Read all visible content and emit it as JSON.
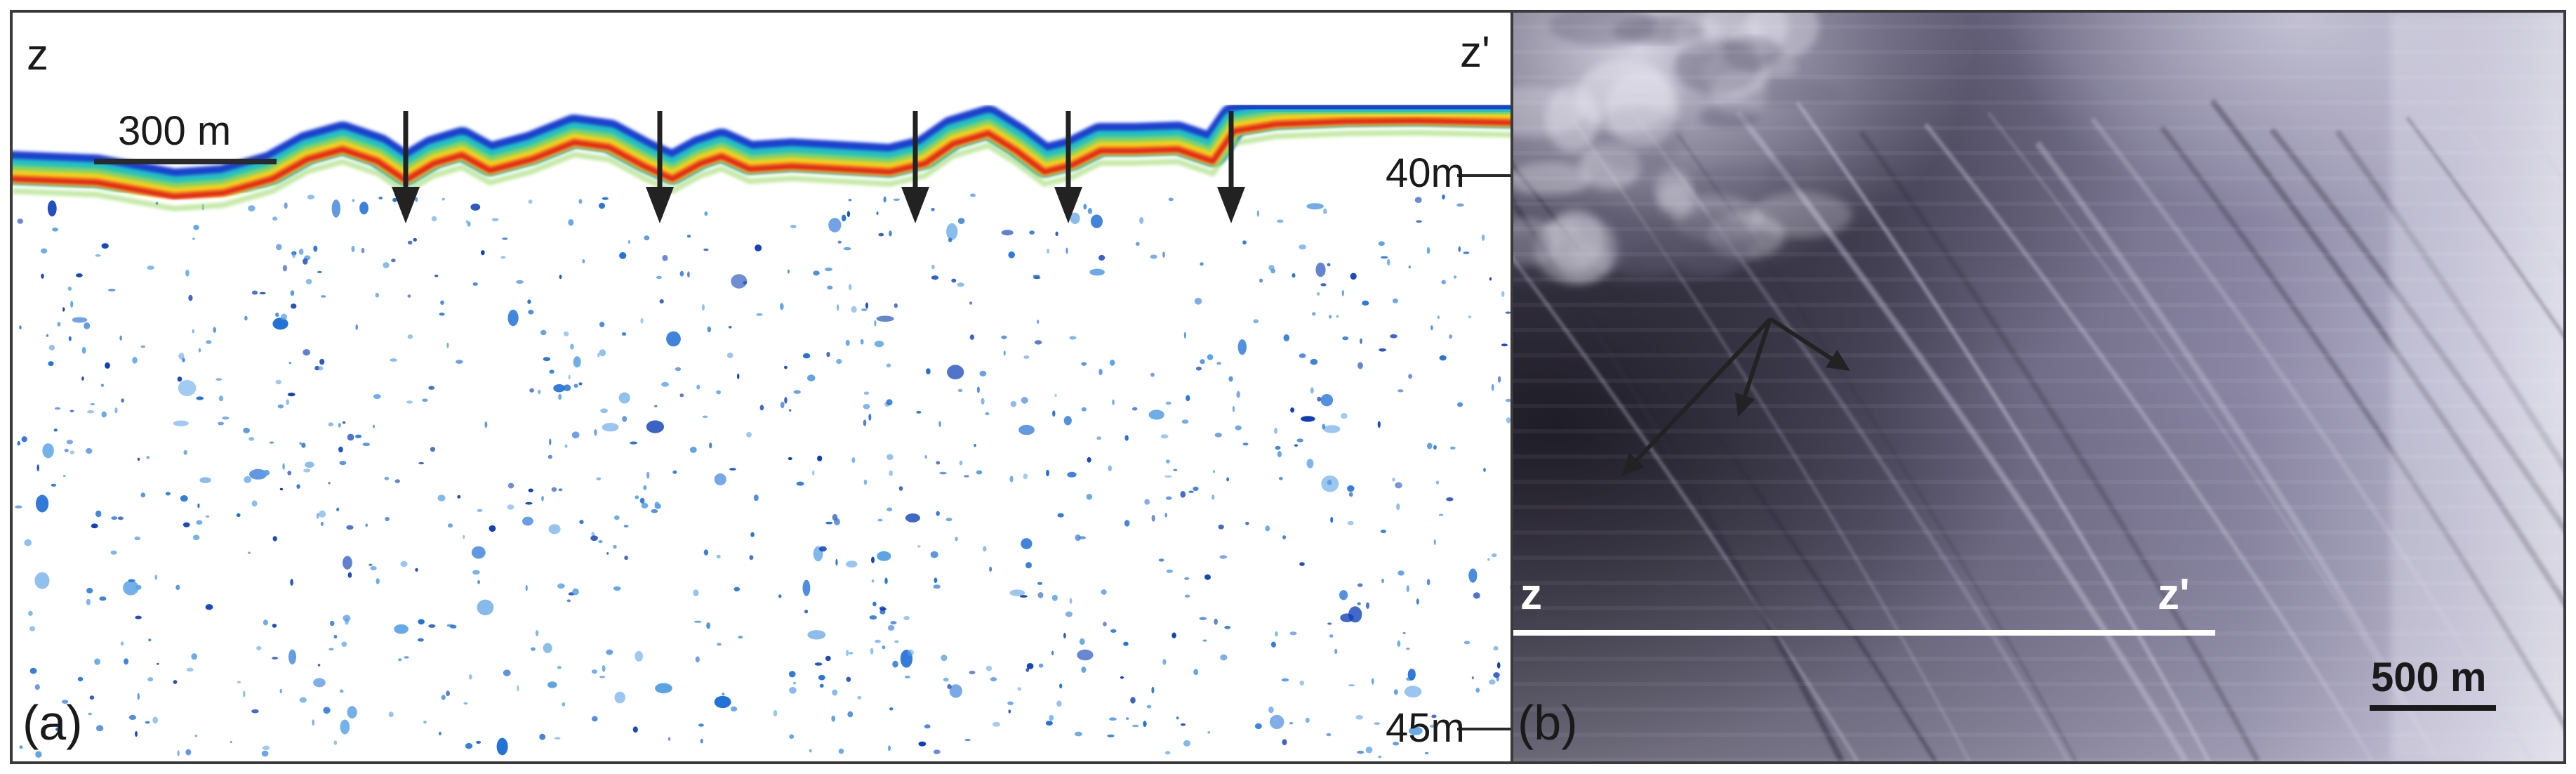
{
  "panel_a": {
    "start_label": "z",
    "end_label": "z'",
    "scale_bar_label": "300 m",
    "depth_top_label": "40m",
    "depth_bottom_label": "45m",
    "panel_label": "(a)",
    "arrow_count": 5
  },
  "panel_b": {
    "profile_start_label": "z",
    "profile_end_label": "z'",
    "scale_bar_label": "500 m",
    "panel_label": "(b)"
  },
  "colors": {
    "echo_outer": "#1e3fd0",
    "echo_mid": "#22c1c3",
    "echo_inner": "#f2d21c",
    "echo_core": "#e3201b",
    "speckle": "#1f6fd6",
    "arrow": "#222222",
    "profile_line": "#ffffff"
  }
}
